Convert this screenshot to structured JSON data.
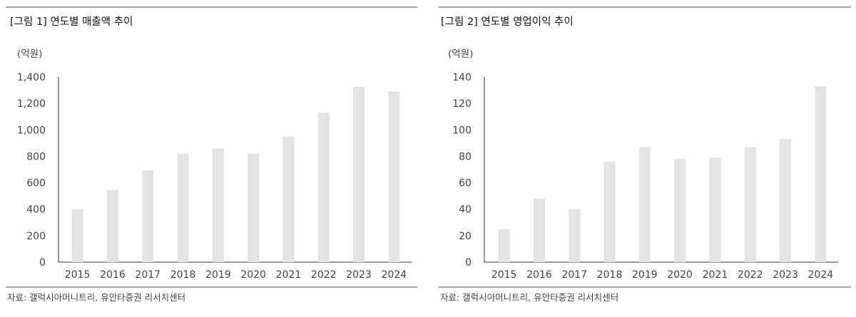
{
  "source": "자료: 갤럭시아머니트리, 유안타증권 리서치센터",
  "chart_data": [
    {
      "type": "bar",
      "title": "[그림 1] 연도별 매출액 추이",
      "unit": "(억원)",
      "xlabel": "",
      "ylabel": "",
      "categories": [
        "2015",
        "2016",
        "2017",
        "2018",
        "2019",
        "2020",
        "2021",
        "2022",
        "2023",
        "2024"
      ],
      "values": [
        400,
        545,
        695,
        820,
        860,
        820,
        950,
        1130,
        1325,
        1290
      ],
      "ylim": [
        0,
        1400
      ],
      "yticks": [
        0,
        200,
        400,
        600,
        800,
        1000,
        1200,
        1400
      ],
      "yticklabels": [
        "0",
        "200",
        "400",
        "600",
        "800",
        "1,000",
        "1,200",
        "1,400"
      ],
      "bar_color": "#e3e3e3",
      "grid": false,
      "legend": "none"
    },
    {
      "type": "bar",
      "title": "[그림 2] 연도별 영업이익 추이",
      "unit": "(억원)",
      "xlabel": "",
      "ylabel": "",
      "categories": [
        "2015",
        "2016",
        "2017",
        "2018",
        "2019",
        "2020",
        "2021",
        "2022",
        "2023",
        "2024"
      ],
      "values": [
        25,
        48,
        40,
        76,
        87,
        78,
        79,
        87,
        93,
        133
      ],
      "ylim": [
        0,
        140
      ],
      "yticks": [
        0,
        20,
        40,
        60,
        80,
        100,
        120,
        140
      ],
      "yticklabels": [
        "0",
        "20",
        "40",
        "60",
        "80",
        "100",
        "120",
        "140"
      ],
      "bar_color": "#e3e3e3",
      "grid": false,
      "legend": "none"
    }
  ],
  "colors": {
    "rule": "#3a4f7a",
    "axis": "#333333"
  }
}
